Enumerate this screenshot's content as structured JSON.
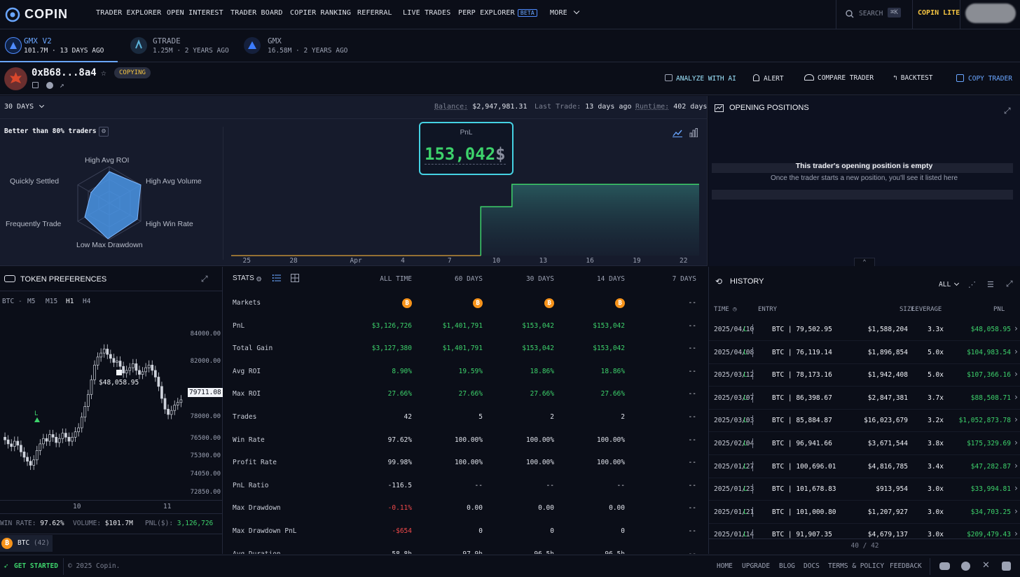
{
  "brand": {
    "name": "COPIN",
    "accent": "#6aa6ff"
  },
  "nav": {
    "items": [
      "TRADER EXPLORER",
      "OPEN INTEREST",
      "TRADER BOARD",
      "COPIER RANKING",
      "REFERRAL",
      "LIVE TRADES",
      "PERP EXPLORER"
    ],
    "beta": "BETA",
    "more": "MORE",
    "search_label": "SEARCH",
    "search_shortcut": "⌘K",
    "lite": "COPIN LITE"
  },
  "protocols": [
    {
      "name": "GMX V2",
      "sub": "101.7M · 13 DAYS AGO",
      "active": true
    },
    {
      "name": "GTRADE",
      "sub": "1.25M · 2 YEARS AGO",
      "active": false
    },
    {
      "name": "GMX",
      "sub": "16.58M · 2 YEARS AGO",
      "active": false
    }
  ],
  "trader": {
    "address": "0xB68...8a4",
    "status": "COPYING",
    "actions": [
      "ANALYZE WITH AI",
      "ALERT",
      "COMPARE TRADER",
      "BACKTEST",
      "COPY TRADER"
    ]
  },
  "overview": {
    "period": "30 DAYS",
    "balance_label": "Balance:",
    "balance": "$2,947,981.31",
    "last_trade_label": "Last Trade:",
    "last_trade": "13 days ago",
    "runtime_label": "Runtime:",
    "runtime": "402 days",
    "better_than": "Better than 80% traders",
    "radar_labels": [
      "High Avg ROI",
      "High Avg Volume",
      "High Win Rate",
      "Low Max Drawdown",
      "Frequently Trade",
      "Quickly Settled"
    ],
    "pnl_label": "PnL",
    "pnl_value": "153,042",
    "pnl_unit": "$"
  },
  "chart_data": {
    "type": "area",
    "title": "PnL",
    "x": [
      "Mar 24",
      "Mar 25",
      "Mar 26",
      "Mar 27",
      "Mar 28",
      "Mar 29",
      "Mar 30",
      "Mar 31",
      "Apr 1",
      "Apr 2",
      "Apr 3",
      "Apr 4",
      "Apr 5",
      "Apr 6",
      "Apr 7",
      "Apr 8",
      "Apr 9",
      "Apr 10",
      "Apr 11",
      "Apr 12",
      "Apr 13",
      "Apr 14",
      "Apr 15",
      "Apr 16",
      "Apr 17",
      "Apr 18",
      "Apr 19",
      "Apr 20",
      "Apr 21",
      "Apr 22",
      "Apr 23"
    ],
    "series": [
      {
        "values": [
          0,
          0,
          0,
          0,
          0,
          0,
          0,
          0,
          0,
          0,
          0,
          0,
          0,
          0,
          0,
          0,
          104983,
          104983,
          153042,
          153042,
          153042,
          153042,
          153042,
          153042,
          153042,
          153042,
          153042,
          153042,
          153042,
          153042,
          153042
        ]
      }
    ],
    "xticks": [
      "25",
      "28",
      "Apr",
      "4",
      "7",
      "10",
      "13",
      "16",
      "19",
      "22"
    ],
    "ylim": [
      0,
      170000
    ]
  },
  "open_positions": {
    "title": "OPENING POSITIONS",
    "empty_title": "This trader's opening position is empty",
    "empty_sub": "Once the trader starts a new position, you'll see it listed here"
  },
  "token_pref": {
    "title": "TOKEN PREFERENCES",
    "symbol": "BTC",
    "timeframes": [
      "M5",
      "M15",
      "H1",
      "H4"
    ],
    "active_tf": "H1",
    "yticks": [
      "84000.00",
      "82000.00",
      "78000.00",
      "76500.00",
      "75300.00",
      "74050.00",
      "72850.00"
    ],
    "price_tag": "79711.08",
    "marker_label": "$48,058.95",
    "entry_marker": "L",
    "xticks": [
      "10",
      "11"
    ],
    "win_rate_label": "WIN RATE:",
    "win_rate": "97.62%",
    "volume_label": "VOLUME:",
    "volume": "$101.7M",
    "pnl_label": "PNL($):",
    "pnl": "3,126,726",
    "chip": "BTC",
    "chip_count": "(42)"
  },
  "stats": {
    "title": "STATS",
    "columns": [
      "ALL TIME",
      "60 DAYS",
      "30 DAYS",
      "14 DAYS",
      "7 DAYS"
    ],
    "rows": [
      {
        "label": "Markets",
        "values": [
          "btc",
          "btc",
          "btc",
          "btc",
          "--"
        ],
        "tone": "icon"
      },
      {
        "label": "PnL",
        "values": [
          "$3,126,726",
          "$1,401,791",
          "$153,042",
          "$153,042",
          "--"
        ],
        "tone": "green"
      },
      {
        "label": "Total Gain",
        "values": [
          "$3,127,380",
          "$1,401,791",
          "$153,042",
          "$153,042",
          "--"
        ],
        "tone": "green"
      },
      {
        "label": "Avg ROI",
        "values": [
          "8.90%",
          "19.59%",
          "18.86%",
          "18.86%",
          "--"
        ],
        "tone": "green"
      },
      {
        "label": "Max ROI",
        "values": [
          "27.66%",
          "27.66%",
          "27.66%",
          "27.66%",
          "--"
        ],
        "tone": "green"
      },
      {
        "label": "Trades",
        "values": [
          "42",
          "5",
          "2",
          "2",
          "--"
        ],
        "tone": "white"
      },
      {
        "label": "Win Rate",
        "values": [
          "97.62%",
          "100.00%",
          "100.00%",
          "100.00%",
          "--"
        ],
        "tone": "white"
      },
      {
        "label": "Profit Rate",
        "values": [
          "99.98%",
          "100.00%",
          "100.00%",
          "100.00%",
          "--"
        ],
        "tone": "white"
      },
      {
        "label": "PnL Ratio",
        "values": [
          "-116.5",
          "--",
          "--",
          "--",
          "--"
        ],
        "tone": "white"
      },
      {
        "label": "Max Drawdown",
        "values": [
          "-0.11%",
          "0.00",
          "0.00",
          "0.00",
          "--"
        ],
        "tone": "firstred"
      },
      {
        "label": "Max Drawdown PnL",
        "values": [
          "-$654",
          "0",
          "0",
          "0",
          "--"
        ],
        "tone": "firstred"
      },
      {
        "label": "Avg Duration",
        "values": [
          "58.8h",
          "97.9h",
          "96.5h",
          "96.5h",
          "--"
        ],
        "tone": "white"
      }
    ]
  },
  "history": {
    "title": "HISTORY",
    "filter": "ALL",
    "columns": [
      "TIME",
      "ENTRY",
      "SIZE",
      "LEVERAGE",
      "PNL"
    ],
    "rows": [
      {
        "date": "2025/04/10",
        "side": "L",
        "entry": "BTC | 79,502.95",
        "size": "$1,588,204",
        "lev": "3.3x",
        "pnl": "$48,058.95"
      },
      {
        "date": "2025/04/08",
        "side": "L",
        "entry": "BTC | 76,119.14",
        "size": "$1,896,854",
        "lev": "5.0x",
        "pnl": "$104,983.54"
      },
      {
        "date": "2025/03/12",
        "side": "L",
        "entry": "BTC | 78,173.16",
        "size": "$1,942,408",
        "lev": "5.0x",
        "pnl": "$107,366.16"
      },
      {
        "date": "2025/03/07",
        "side": "L",
        "entry": "BTC | 86,398.67",
        "size": "$2,847,381",
        "lev": "3.7x",
        "pnl": "$88,508.71"
      },
      {
        "date": "2025/03/03",
        "side": "L",
        "entry": "BTC | 85,884.87",
        "size": "$16,023,679",
        "lev": "3.2x",
        "pnl": "$1,052,873.78"
      },
      {
        "date": "2025/02/04",
        "side": "L",
        "entry": "BTC | 96,941.66",
        "size": "$3,671,544",
        "lev": "3.8x",
        "pnl": "$175,329.69"
      },
      {
        "date": "2025/01/27",
        "side": "L",
        "entry": "BTC | 100,696.01",
        "size": "$4,816,785",
        "lev": "3.4x",
        "pnl": "$47,282.87"
      },
      {
        "date": "2025/01/23",
        "side": "L",
        "entry": "BTC | 101,678.83",
        "size": "$913,954",
        "lev": "3.0x",
        "pnl": "$33,994.81"
      },
      {
        "date": "2025/01/21",
        "side": "L",
        "entry": "BTC | 101,000.80",
        "size": "$1,207,927",
        "lev": "3.0x",
        "pnl": "$34,703.25"
      },
      {
        "date": "2025/01/14",
        "side": "L",
        "entry": "BTC | 91,907.35",
        "size": "$4,679,137",
        "lev": "3.0x",
        "pnl": "$209,479.43"
      }
    ],
    "count": "40 / 42"
  },
  "footer": {
    "get_started": "GET STARTED",
    "copyright": "© 2025 Copin.",
    "links": [
      "HOME",
      "UPGRADE",
      "BLOG",
      "DOCS",
      "TERMS & POLICY",
      "FEEDBACK"
    ]
  }
}
